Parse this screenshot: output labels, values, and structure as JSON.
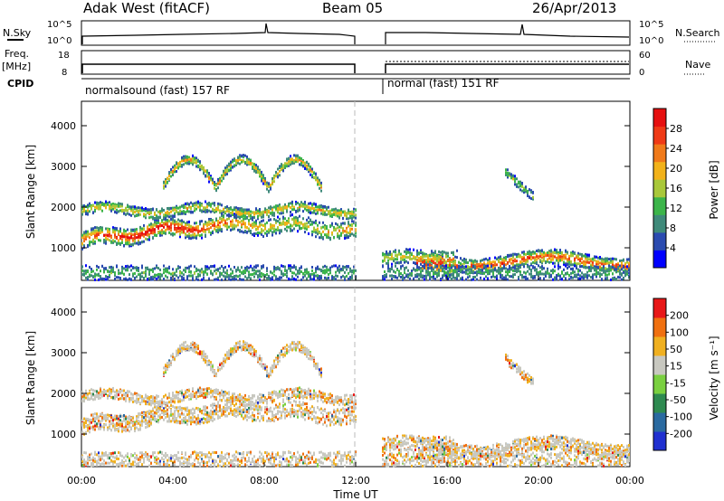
{
  "header": {
    "radar": "Adak West (fitACF)",
    "beam": "Beam 05",
    "date": "26/Apr/2013"
  },
  "panels": {
    "nsky": {
      "left_label": "N.Sky",
      "right_label": "N.Search",
      "left_ticks": [
        "10^5",
        "10^0"
      ],
      "right_ticks": [
        "10^5",
        "10^0"
      ]
    },
    "freq": {
      "left_label": "Freq.",
      "left_unit": "[MHz]",
      "right_label": "Nave",
      "left_ticks": [
        "18",
        "8"
      ],
      "right_ticks": [
        "60",
        "0"
      ]
    },
    "cpid": {
      "label": "CPID",
      "segments": [
        "normalsound (fast) 157 RF",
        "normal (fast) 151 RF"
      ]
    }
  },
  "chart_data": [
    {
      "type": "heatmap",
      "name": "power",
      "ylabel": "Slant Range [km]",
      "y_ticks": [
        1000,
        2000,
        3000,
        4000
      ],
      "ylim": [
        200,
        4600
      ],
      "colorbar_label": "Power [dB]",
      "colorbar_ticks": [
        "28",
        "24",
        "20",
        "16",
        "12",
        "8",
        "4"
      ],
      "colors": [
        "#0000ff",
        "#2b4bb0",
        "#3f8a7a",
        "#3cb54a",
        "#a9c83a",
        "#f2b21a",
        "#f07a1a",
        "#ef3a16",
        "#e61010"
      ]
    },
    {
      "type": "heatmap",
      "name": "velocity",
      "ylabel": "Slant Range [km]",
      "y_ticks": [
        1000,
        2000,
        3000,
        4000
      ],
      "ylim": [
        200,
        4600
      ],
      "colorbar_label": "Velocity [m s⁻¹]",
      "colorbar_ticks": [
        "200",
        "100",
        "50",
        "15",
        "-15",
        "-50",
        "-100",
        "-200"
      ],
      "colors": [
        "#2030d0",
        "#2a6aa0",
        "#2e8a50",
        "#7ad040",
        "#c8c8c0",
        "#f0b020",
        "#f07010",
        "#e81818"
      ]
    }
  ],
  "xaxis": {
    "label": "Time UT",
    "ticks": [
      "00:00",
      "04:00",
      "08:00",
      "12:00",
      "16:00",
      "20:00",
      "00:00"
    ],
    "range_hours": [
      0,
      24
    ],
    "gap_hours": [
      12,
      13.1
    ]
  }
}
